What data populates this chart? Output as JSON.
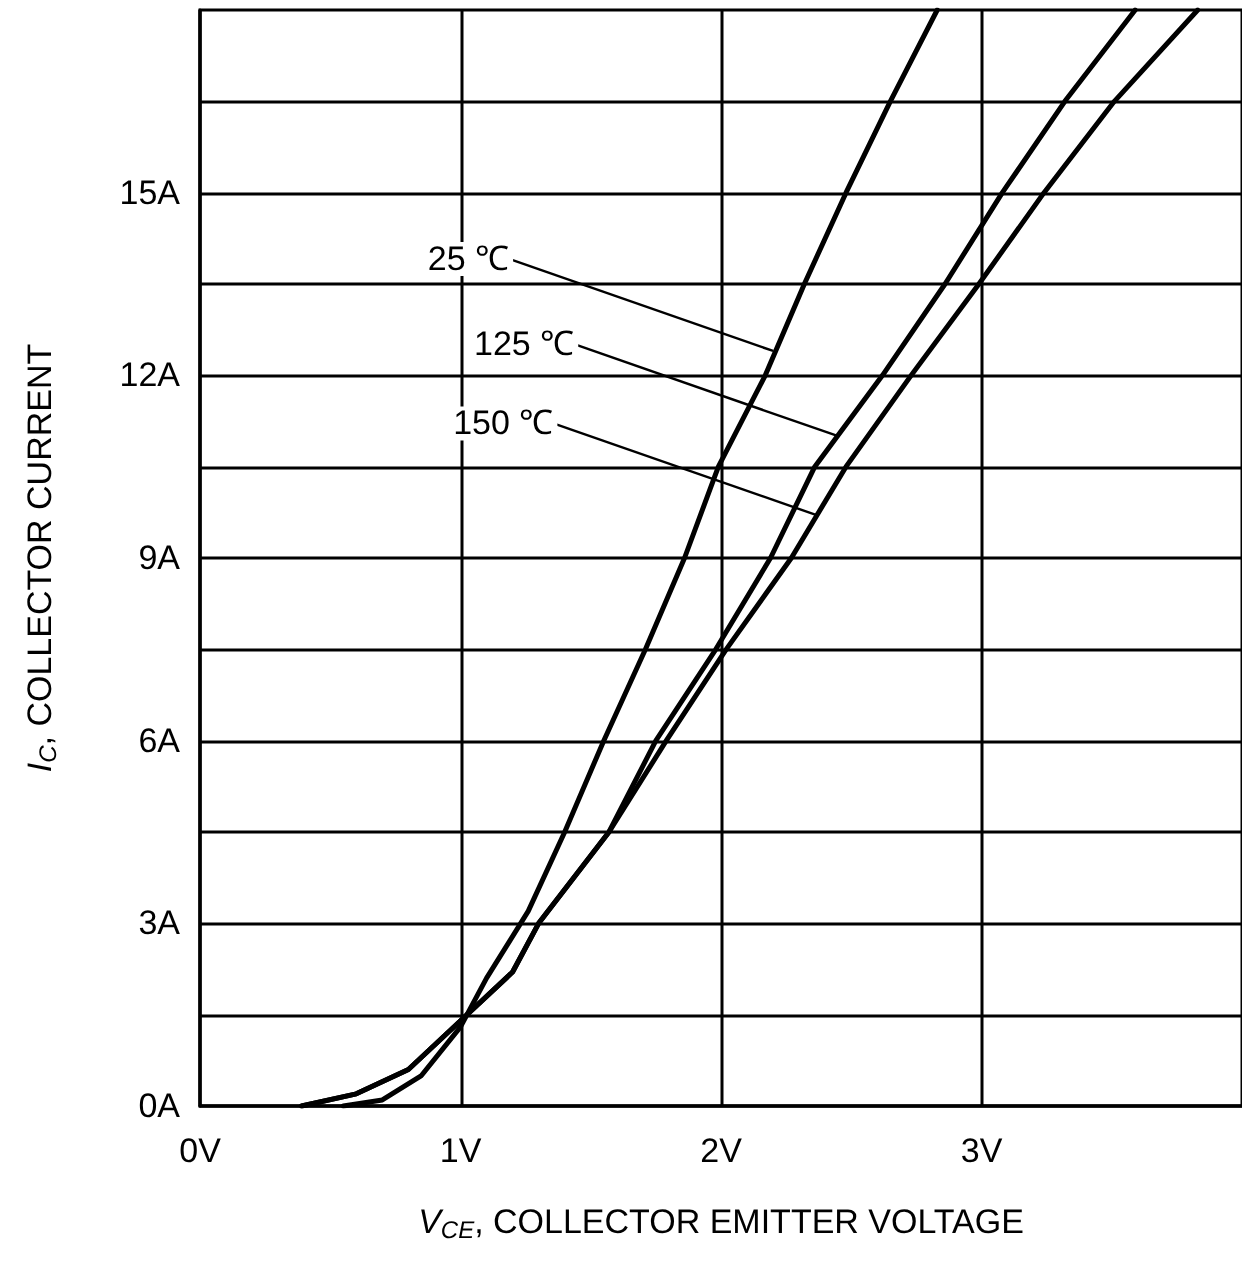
{
  "chart_data": {
    "type": "line",
    "xlabel": "V$_{CE}$, COLLECTOR EMITTER VOLTAGE",
    "ylabel": "I$_{C}$, COLLECTOR CURRENT",
    "xlim": [
      0,
      4
    ],
    "xticks": [
      {
        "value": 0,
        "label": "0V"
      },
      {
        "value": 1,
        "label": "1V"
      },
      {
        "value": 2,
        "label": "2V"
      },
      {
        "value": 3,
        "label": "3V"
      }
    ],
    "ylim": [
      0,
      18
    ],
    "yticks": [
      {
        "value": 0,
        "label": "0A"
      },
      {
        "value": 1.5,
        "label": null
      },
      {
        "value": 3,
        "label": "3A"
      },
      {
        "value": 4.5,
        "label": null
      },
      {
        "value": 6,
        "label": "6A"
      },
      {
        "value": 7.5,
        "label": null
      },
      {
        "value": 9,
        "label": "9A"
      },
      {
        "value": 10.5,
        "label": null
      },
      {
        "value": 12,
        "label": "12A"
      },
      {
        "value": 13.5,
        "label": null
      },
      {
        "value": 15,
        "label": "15A"
      },
      {
        "value": 16.5,
        "label": null
      }
    ],
    "grid": true,
    "marker": "none",
    "line_style": "solid",
    "series": [
      {
        "color": "#000000",
        "x": [
          0.55,
          0.7,
          0.85,
          1.0,
          1.1,
          1.26,
          1.4,
          1.55,
          1.71,
          1.86,
          1.99,
          2.17,
          2.32,
          2.48,
          2.65,
          2.83
        ],
        "values": [
          0,
          0.1,
          0.5,
          1.3,
          2.1,
          3.2,
          4.5,
          6,
          7.5,
          9,
          10.5,
          12,
          13.5,
          15,
          16.5,
          18
        ]
      },
      {
        "color": "#000000",
        "x": [
          0.39,
          0.6,
          0.8,
          1.0,
          1.2,
          1.3,
          1.57,
          1.75,
          1.98,
          2.19,
          2.36,
          2.62,
          2.86,
          3.08,
          3.32,
          3.59
        ],
        "values": [
          0,
          0.2,
          0.6,
          1.4,
          2.2,
          3,
          4.5,
          6,
          7.5,
          9,
          10.5,
          12,
          13.5,
          15,
          16.5,
          18
        ]
      },
      {
        "color": "#000000",
        "x": [
          0.39,
          0.6,
          0.8,
          1.0,
          1.2,
          1.3,
          1.57,
          1.79,
          2.02,
          2.27,
          2.48,
          2.73,
          2.99,
          3.24,
          3.51,
          3.83
        ],
        "values": [
          0,
          0.2,
          0.6,
          1.4,
          2.2,
          3,
          4.5,
          6,
          7.5,
          9,
          10.5,
          12,
          13.5,
          15,
          16.5,
          18
        ]
      }
    ],
    "annotations": [
      {
        "text": "25 ℃",
        "x": 2.2,
        "y": 12.4
      },
      {
        "text": "125 ℃",
        "x": 2.45,
        "y": 11.0
      },
      {
        "text": "150 ℃",
        "x": 2.37,
        "y": 9.7
      }
    ]
  }
}
